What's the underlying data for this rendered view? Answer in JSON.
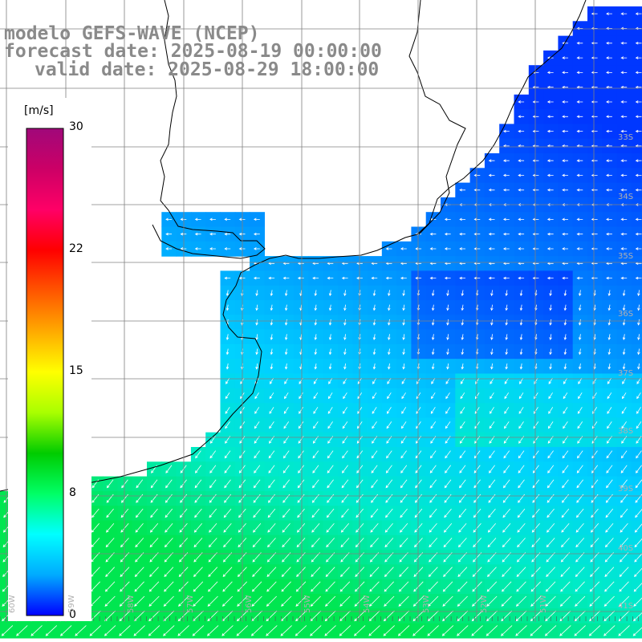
{
  "title": {
    "line1": "modelo GEFS-WAVE (NCEP)",
    "line2": "forecast date: 2025-08-19 00:00:00",
    "line3": "valid date: 2025-08-29 18:00:00"
  },
  "colorbar": {
    "unit": "[m/s]",
    "ticks": [
      "30",
      "22",
      "15",
      "8",
      "0"
    ],
    "tick_values": [
      30,
      22,
      15,
      8,
      0
    ],
    "colors": [
      "#0000ff",
      "#00aaff",
      "#00ffff",
      "#00ff66",
      "#00cc00",
      "#aaff00",
      "#ffff00",
      "#ffaa00",
      "#ff5500",
      "#ff0000",
      "#ff0066",
      "#cc0066",
      "#a0087a"
    ]
  },
  "lat_labels": [
    "33S",
    "34S",
    "35S",
    "36S",
    "37S",
    "38S",
    "39S",
    "40S",
    "41S"
  ],
  "lon_labels": [
    "60W",
    "59W",
    "58W",
    "57W",
    "56W",
    "55W",
    "54W",
    "53W",
    "52W",
    "51W"
  ],
  "colors": {
    "land": "#ffffff",
    "coastline": "#000000",
    "grid": "#808080",
    "arrows": "#ffffff",
    "title": "#8a8a8a"
  }
}
